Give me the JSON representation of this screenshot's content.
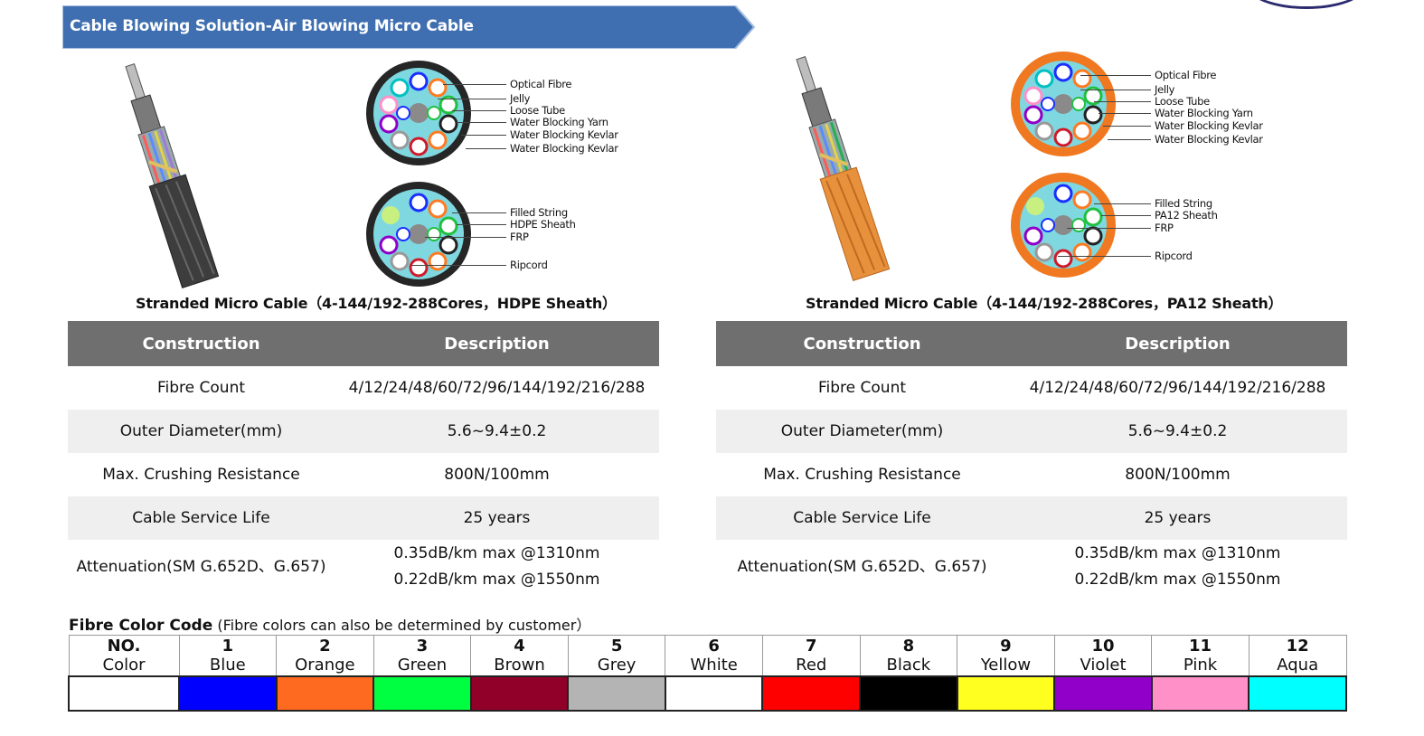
{
  "banner": {
    "title": "Cable Blowing Solution-Air Blowing Micro Cable"
  },
  "panels": [
    {
      "id": "hdpe",
      "caption": "Stranded Micro Cable（4-144/192-288Cores，HDPE Sheath）",
      "labels_top": [
        "Optical Fibre",
        "Jelly",
        "Loose Tube",
        "Water Blocking Yarn",
        "Water Blocking Kevlar",
        "Water Blocking Kevlar"
      ],
      "labels_bottom": [
        "Filled String",
        "HDPE Sheath",
        "FRP",
        "Ripcord"
      ],
      "sheath_color": "#2a2a2a",
      "jacket_color": "#4a4a4a"
    },
    {
      "id": "pa12",
      "caption": "Stranded Micro Cable（4-144/192-288Cores，PA12 Sheath）",
      "labels_top": [
        "Optical Fibre",
        "Jelly",
        "Loose Tube",
        "Water Blocking Yarn",
        "Water Blocking Kevlar",
        "Water Blocking Kevlar"
      ],
      "labels_bottom": [
        "Filled String",
        "PA12 Sheath",
        "FRP",
        "Ripcord"
      ],
      "sheath_color": "#f07820",
      "jacket_color": "#e8913c"
    }
  ],
  "table": {
    "headers": [
      "Construction",
      "Description"
    ],
    "rows": [
      {
        "construction": "Fibre Count",
        "description": "4/12/24/48/60/72/96/144/192/216/288"
      },
      {
        "construction": "Outer Diameter(mm)",
        "description": "5.6~9.4±0.2"
      },
      {
        "construction": "Max. Crushing Resistance",
        "description": "800N/100mm"
      },
      {
        "construction": "Cable Service Life",
        "description": "25 years"
      }
    ],
    "attenuation": {
      "construction": "Attenuation(SM G.652D、G.657)",
      "line1": "0.35dB/km max @1310nm",
      "line2": "0.22dB/km max @1550nm"
    }
  },
  "fibre_color_code": {
    "title": "Fibre Color Code",
    "note": "(Fibre colors can also be determined by customer）",
    "header": {
      "no": "NO.",
      "color": "Color"
    },
    "colors": [
      {
        "no": "1",
        "name": "Blue",
        "hex": "#0000ff"
      },
      {
        "no": "2",
        "name": "Orange",
        "hex": "#ff6a21"
      },
      {
        "no": "3",
        "name": "Green",
        "hex": "#00ff40"
      },
      {
        "no": "4",
        "name": "Brown",
        "hex": "#900028"
      },
      {
        "no": "5",
        "name": "Grey",
        "hex": "#b4b4b4"
      },
      {
        "no": "6",
        "name": "White",
        "hex": "#ffffff"
      },
      {
        "no": "7",
        "name": "Red",
        "hex": "#ff0000"
      },
      {
        "no": "8",
        "name": "Black",
        "hex": "#000000"
      },
      {
        "no": "9",
        "name": "Yellow",
        "hex": "#ffff20"
      },
      {
        "no": "10",
        "name": "Violet",
        "hex": "#9000c8"
      },
      {
        "no": "11",
        "name": "Pink",
        "hex": "#ff90c8"
      },
      {
        "no": "12",
        "name": "Aqua",
        "hex": "#00ffff"
      }
    ]
  }
}
